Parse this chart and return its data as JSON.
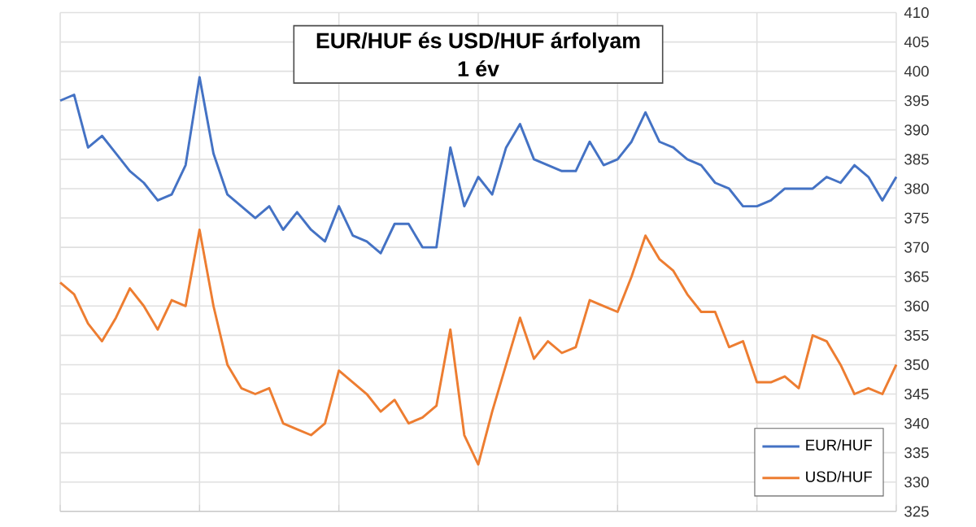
{
  "chart_data": {
    "type": "line",
    "title": "EUR/HUF és USD/HUF árfolyam",
    "subtitle": "1 év",
    "categories": [
      null,
      null,
      null,
      null,
      null,
      null,
      null,
      null,
      null,
      null,
      null,
      null,
      null,
      null,
      null,
      null,
      null,
      null,
      null,
      null,
      null,
      null,
      null,
      null,
      null,
      null,
      null,
      null,
      null,
      null,
      null,
      null,
      null,
      null,
      null,
      null,
      null,
      null,
      null,
      null,
      null,
      null,
      null,
      null,
      null,
      null,
      null,
      null,
      null,
      null,
      null,
      null,
      null,
      null,
      null,
      null,
      null,
      null,
      null,
      null,
      null
    ],
    "series": [
      {
        "name": "EUR/HUF",
        "color": "#4472c4",
        "values": [
          395,
          396,
          387,
          389,
          386,
          383,
          381,
          378,
          379,
          384,
          399,
          386,
          379,
          377,
          375,
          377,
          373,
          376,
          373,
          371,
          377,
          372,
          371,
          369,
          374,
          374,
          370,
          370,
          387,
          377,
          382,
          379,
          387,
          391,
          385,
          384,
          383,
          383,
          388,
          384,
          385,
          388,
          393,
          388,
          387,
          385,
          384,
          381,
          380,
          377,
          377,
          378,
          380,
          380,
          380,
          382,
          381,
          384,
          382,
          378,
          382
        ]
      },
      {
        "name": "USD/HUF",
        "color": "#ed7d31",
        "values": [
          364,
          362,
          357,
          354,
          358,
          363,
          360,
          356,
          361,
          360,
          373,
          360,
          350,
          346,
          345,
          346,
          340,
          339,
          338,
          340,
          349,
          347,
          345,
          342,
          344,
          340,
          341,
          343,
          356,
          338,
          333,
          342,
          350,
          358,
          351,
          354,
          352,
          353,
          361,
          360,
          359,
          365,
          372,
          368,
          366,
          362,
          359,
          359,
          353,
          354,
          347,
          347,
          348,
          346,
          355,
          354,
          350,
          345,
          346,
          345,
          350
        ]
      }
    ],
    "ylim": [
      325,
      410
    ],
    "yticks": [
      325,
      330,
      335,
      340,
      345,
      350,
      355,
      360,
      365,
      370,
      375,
      380,
      385,
      390,
      395,
      400,
      405,
      410
    ],
    "grid": true,
    "legend": "bottom right",
    "tick_labels": "y",
    "marker": "none",
    "line_style": "solid"
  }
}
